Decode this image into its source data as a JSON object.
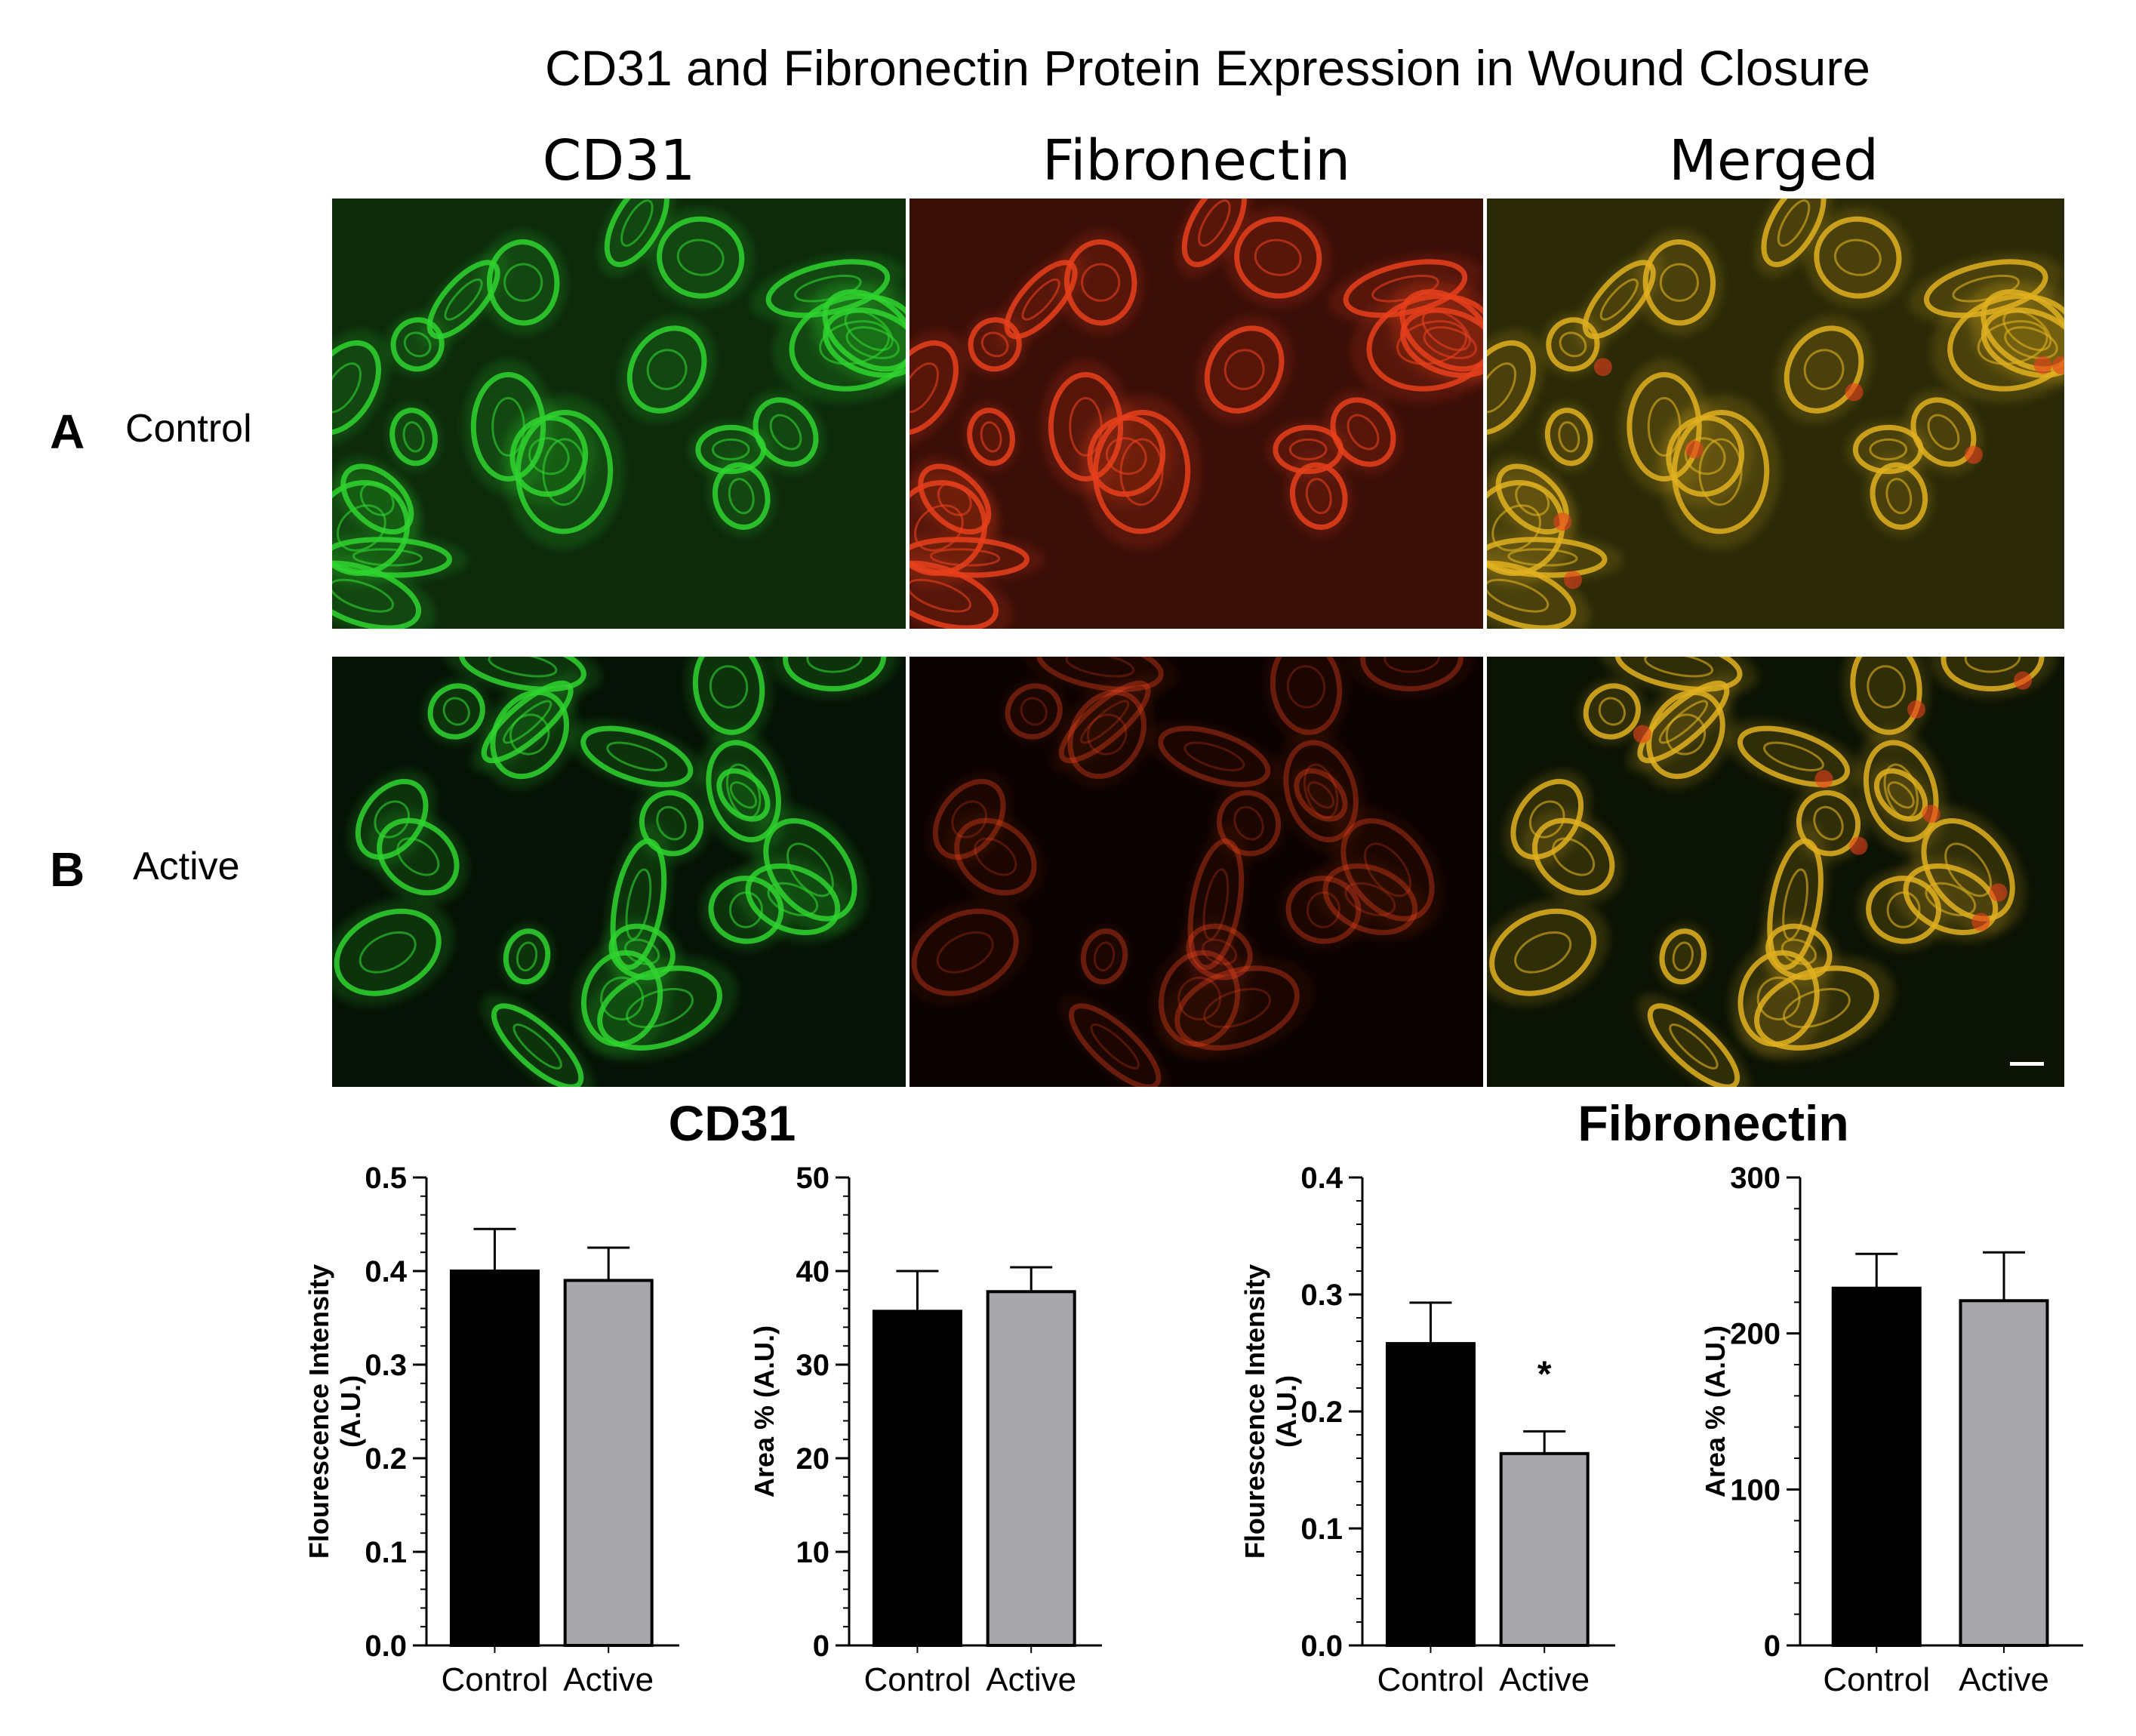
{
  "figure": {
    "title": "CD31 and Fibronectin Protein Expression in Wound Closure",
    "column_headers": [
      "CD31",
      "Fibronectin",
      "Merged"
    ],
    "rows": [
      {
        "letter": "A",
        "label": "Control"
      },
      {
        "letter": "B",
        "label": "Active"
      }
    ],
    "section_titles": [
      "CD31",
      "Fibronectin"
    ],
    "colors": {
      "cd31_stain": "#2fd42f",
      "fibronectin_stain": "#e8401c",
      "merged_overlap": "#e0b020",
      "control_bar": "#000000",
      "active_bar": "#a6a6ab"
    }
  },
  "chart_data": [
    {
      "type": "bar",
      "section": "CD31",
      "categories": [
        "Control",
        "Active"
      ],
      "values": [
        0.4,
        0.39
      ],
      "error": [
        0.045,
        0.035
      ],
      "ylabel": "Flourescence Intensity\n(A.U.)",
      "ylim": [
        0,
        0.5
      ],
      "yticks": [
        "0.0",
        "0.1",
        "0.2",
        "0.3",
        "0.4",
        "0.5"
      ],
      "significance": [
        "",
        ""
      ]
    },
    {
      "type": "bar",
      "section": "CD31",
      "categories": [
        "Control",
        "Active"
      ],
      "values": [
        35.7,
        37.8
      ],
      "error": [
        4.3,
        2.6
      ],
      "ylabel": "Area % (A.U.)",
      "ylim": [
        0,
        50
      ],
      "yticks": [
        "0",
        "10",
        "20",
        "30",
        "40",
        "50"
      ],
      "significance": [
        "",
        ""
      ]
    },
    {
      "type": "bar",
      "section": "Fibronectin",
      "categories": [
        "Control",
        "Active"
      ],
      "values": [
        0.258,
        0.164
      ],
      "error": [
        0.035,
        0.019
      ],
      "ylabel": "Flourescence Intensity\n(A.U.)",
      "ylim": [
        0,
        0.4
      ],
      "yticks": [
        "0.0",
        "0.1",
        "0.2",
        "0.3",
        "0.4"
      ],
      "significance": [
        "",
        "*"
      ]
    },
    {
      "type": "bar",
      "section": "Fibronectin",
      "categories": [
        "Control",
        "Active"
      ],
      "values": [
        229,
        221
      ],
      "error": [
        22,
        31
      ],
      "ylabel": "Area % (A.U.)",
      "ylim": [
        0,
        300
      ],
      "yticks": [
        "0",
        "100",
        "200",
        "300"
      ],
      "significance": [
        "",
        ""
      ]
    }
  ]
}
